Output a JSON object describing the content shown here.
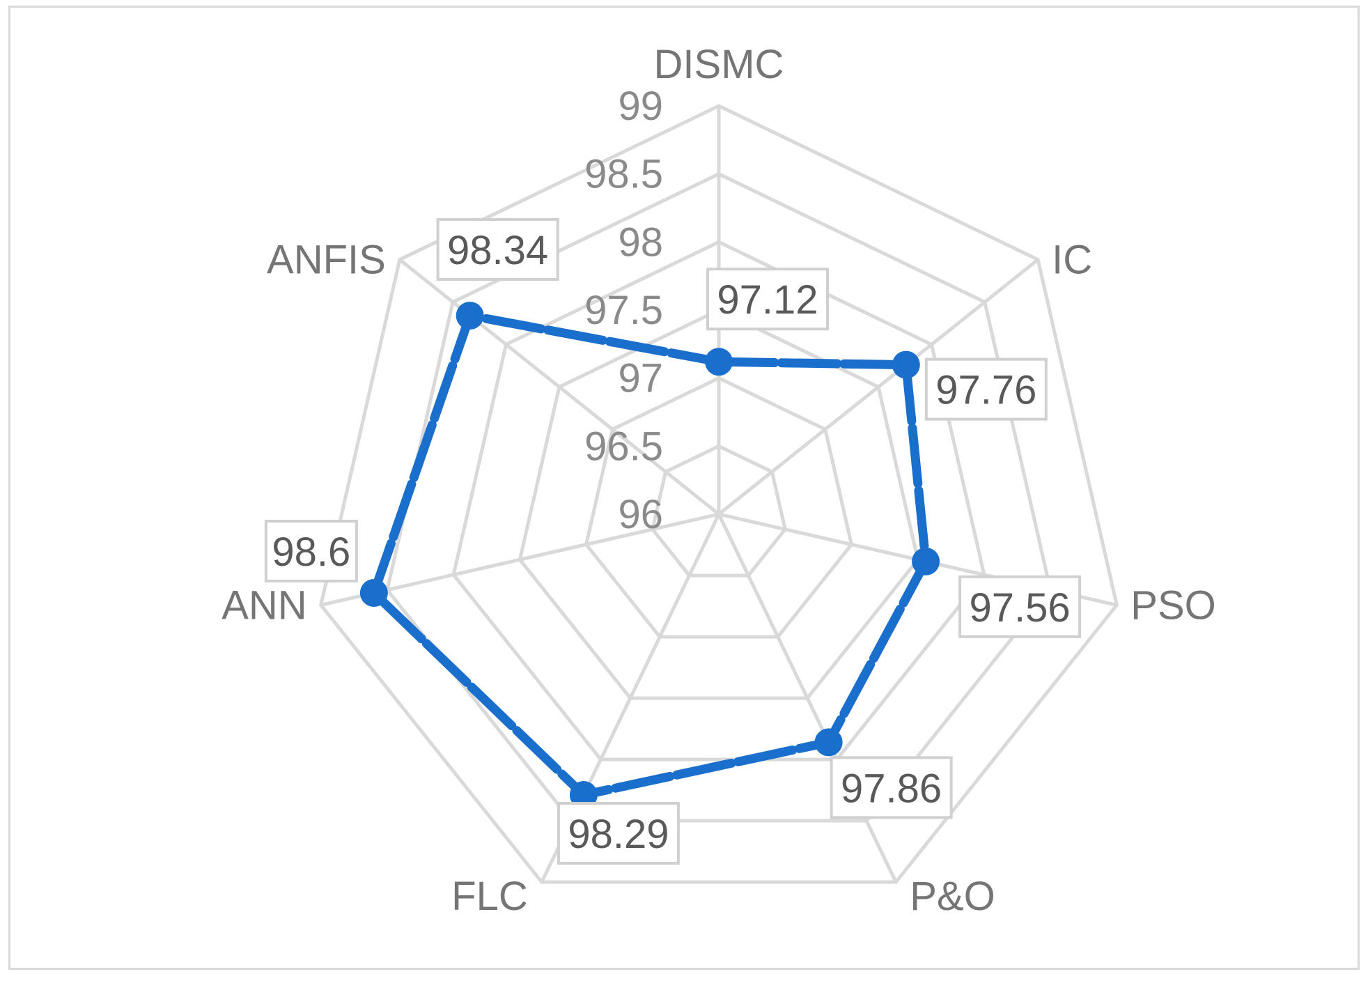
{
  "chart_data": {
    "type": "radar",
    "categories": [
      "DISMC",
      "IC",
      "PSO",
      "P&O",
      "FLC",
      "ANN",
      "ANFIS"
    ],
    "series": [
      {
        "values": [
          97.12,
          97.76,
          97.56,
          97.86,
          98.29,
          98.6,
          98.34
        ],
        "color": "#1a6fcc"
      }
    ],
    "data_labels": [
      "97.12",
      "97.76",
      "97.56",
      "97.86",
      "98.29",
      "98.6",
      "98.34"
    ],
    "rlim": [
      96,
      99
    ],
    "ticks": [
      96,
      96.5,
      97,
      97.5,
      98,
      98.5,
      99
    ],
    "tick_labels": [
      "96",
      "96.5",
      "97",
      "97.5",
      "98",
      "98.5",
      "99"
    ],
    "grid": true,
    "legend": "none",
    "colors": {
      "grid": "#d9d9d9",
      "series": "#1a6fcc",
      "category_text": "#757575",
      "tick_text": "#8a8a8a"
    }
  }
}
